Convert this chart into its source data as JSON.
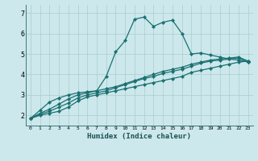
{
  "xlabel": "Humidex (Indice chaleur)",
  "ylabel": "",
  "background_color": "#cce8ec",
  "grid_color": "#aacccc",
  "line_color": "#1a7070",
  "xlim": [
    -0.5,
    23.5
  ],
  "ylim": [
    1.5,
    7.4
  ],
  "x_ticks": [
    0,
    1,
    2,
    3,
    4,
    5,
    6,
    7,
    8,
    9,
    10,
    11,
    12,
    13,
    14,
    15,
    16,
    17,
    18,
    19,
    20,
    21,
    22,
    23
  ],
  "y_ticks": [
    2,
    3,
    4,
    5,
    6,
    7
  ],
  "series": [
    [
      1.85,
      2.25,
      2.65,
      2.85,
      3.0,
      3.1,
      3.15,
      3.2,
      3.9,
      5.1,
      5.65,
      6.7,
      6.8,
      6.35,
      6.55,
      6.65,
      6.0,
      5.0,
      5.05,
      4.95,
      4.85,
      4.75,
      4.7,
      4.6
    ],
    [
      1.85,
      2.0,
      2.1,
      2.2,
      2.4,
      2.7,
      2.9,
      3.0,
      3.1,
      3.2,
      3.3,
      3.4,
      3.5,
      3.6,
      3.7,
      3.8,
      3.9,
      4.1,
      4.2,
      4.3,
      4.4,
      4.5,
      4.6,
      4.65
    ],
    [
      1.85,
      2.05,
      2.2,
      2.4,
      2.6,
      2.85,
      3.0,
      3.1,
      3.2,
      3.35,
      3.5,
      3.65,
      3.8,
      3.9,
      4.05,
      4.15,
      4.25,
      4.4,
      4.55,
      4.65,
      4.7,
      4.75,
      4.8,
      4.6
    ],
    [
      1.85,
      2.1,
      2.3,
      2.55,
      2.8,
      3.0,
      3.1,
      3.2,
      3.3,
      3.4,
      3.55,
      3.7,
      3.85,
      4.0,
      4.15,
      4.25,
      4.35,
      4.5,
      4.6,
      4.7,
      4.75,
      4.8,
      4.85,
      4.65
    ]
  ],
  "marker": "D",
  "markersize": 2.2,
  "linewidth": 0.9,
  "tick_fontsize_x": 4.5,
  "tick_fontsize_y": 6.0,
  "xlabel_fontsize": 6.5
}
